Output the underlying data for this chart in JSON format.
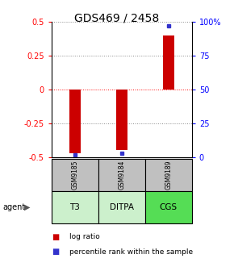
{
  "title": "GDS469 / 2458",
  "samples": [
    "GSM9185",
    "GSM9184",
    "GSM9189"
  ],
  "agents": [
    "T3",
    "DITPA",
    "CGS"
  ],
  "log_ratios": [
    -0.47,
    -0.45,
    0.4
  ],
  "percentile_ranks": [
    2.0,
    3.0,
    97.0
  ],
  "ylim_left": [
    -0.5,
    0.5
  ],
  "ylim_right": [
    0,
    100
  ],
  "yticks_left": [
    -0.5,
    -0.25,
    0,
    0.25,
    0.5
  ],
  "yticks_right": [
    0,
    25,
    50,
    75,
    100
  ],
  "bar_color": "#cc0000",
  "dot_color": "#3333cc",
  "gray_bg": "#c0c0c0",
  "agent_colors": [
    "#ccf0cc",
    "#ccf0cc",
    "#55dd55"
  ],
  "bar_width": 0.25,
  "title_fontsize": 10,
  "tick_fontsize": 7,
  "legend_fontsize": 6.5
}
